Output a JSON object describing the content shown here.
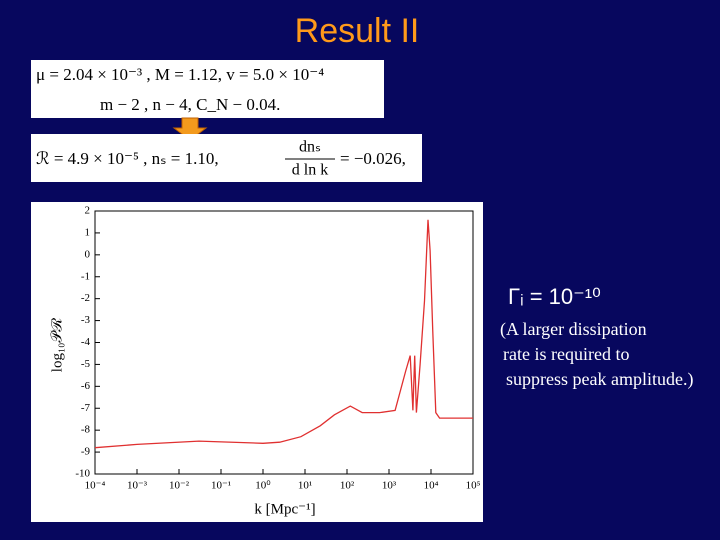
{
  "slide": {
    "title": "Result  II",
    "equation_1": "μ = 2.04 × 10⁻³ ,   M = 1.12,   v = 5.0 × 10⁻⁴",
    "equation_2": "m − 2 ,   n − 4,   C_N − 0.04.",
    "equation_3_left": "ℛ = 4.9 × 10⁻⁵ ,    nₛ = 1.10,",
    "equation_3_numerator": "dnₛ",
    "equation_3_denominator": "d ln k",
    "equation_3_right": "= −0.026,",
    "gamma": "Γᵢ = 10⁻¹⁰",
    "note": [
      "(A larger dissipation",
      "rate is required to",
      "suppress peak amplitude.)"
    ]
  },
  "chart_data": {
    "type": "line",
    "xlabel": "k [Mpc⁻¹]",
    "ylabel": "log₁₀𝒫ℛ",
    "xscale": "log",
    "color": "#e03030",
    "x": [
      0.0001,
      0.001,
      0.03,
      1,
      2.5,
      8,
      23,
      50,
      120,
      230,
      600,
      1400,
      2500,
      3200,
      3700,
      4100,
      4500,
      5500,
      7000,
      8500,
      9500,
      11000,
      13000,
      16000,
      100000
    ],
    "values": [
      -8.8,
      -8.65,
      -8.5,
      -8.6,
      -8.55,
      -8.3,
      -7.8,
      -7.3,
      -6.9,
      -7.2,
      -7.2,
      -7.1,
      -5.3,
      -4.6,
      -7.1,
      -4.6,
      -7.2,
      -5.0,
      -2.1,
      1.6,
      0.2,
      -3.4,
      -7.2,
      -7.45,
      -7.45
    ],
    "xlim": [
      0.0001,
      100000
    ],
    "ylim": [
      -10,
      2
    ],
    "xticks": [
      {
        "value": 0.0001,
        "label": "10⁻⁴"
      },
      {
        "value": 0.001,
        "label": "10⁻³"
      },
      {
        "value": 0.01,
        "label": "10⁻²"
      },
      {
        "value": 0.1,
        "label": "10⁻¹"
      },
      {
        "value": 1,
        "label": "10⁰"
      },
      {
        "value": 10,
        "label": "10¹"
      },
      {
        "value": 100,
        "label": "10²"
      },
      {
        "value": 1000,
        "label": "10³"
      },
      {
        "value": 10000,
        "label": "10⁴"
      },
      {
        "value": 100000,
        "label": "10⁵"
      }
    ],
    "yticks": [
      -10,
      -9,
      -8,
      -7,
      -6,
      -5,
      -4,
      -3,
      -2,
      -1,
      0,
      1,
      2
    ]
  }
}
